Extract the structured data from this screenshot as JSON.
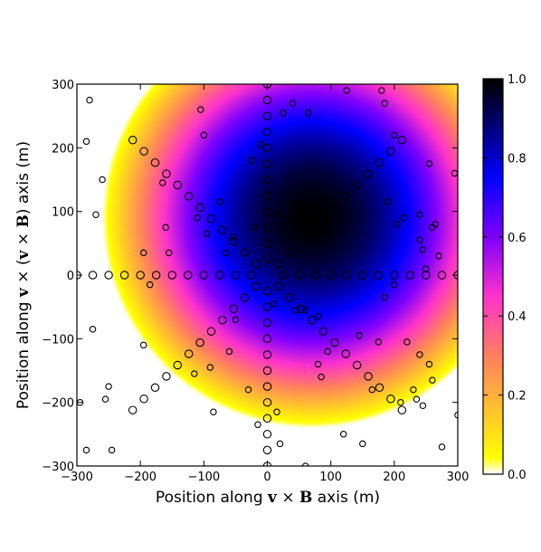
{
  "chart_data": {
    "type": "heatmap",
    "title": "",
    "xlabel": {
      "prefix": "Position along ",
      "vec1": "v",
      "times": " × ",
      "vec2": "B",
      "suffix": " axis (m)"
    },
    "ylabel": {
      "prefix": "Position along ",
      "vec1": "v",
      "times1": " × (",
      "vec2": "v",
      "times2": " × ",
      "vec3": "B",
      "suffix": ") axis (m)"
    },
    "xlim": [
      -300,
      300
    ],
    "ylim": [
      -300,
      300
    ],
    "xticks": [
      -300,
      -200,
      -100,
      0,
      100,
      200,
      300
    ],
    "yticks": [
      -300,
      -200,
      -100,
      0,
      100,
      200,
      300
    ],
    "xtick_labels": [
      "−300",
      "−200",
      "−100",
      "0",
      "100",
      "200",
      "300"
    ],
    "ytick_labels": [
      "−300",
      "−200",
      "−100",
      "0",
      "100",
      "200",
      "300"
    ],
    "heatmap": {
      "peak_center": [
        70,
        90
      ],
      "fade_radius": 330,
      "colormap_stops": [
        {
          "v": 0.0,
          "color": "#ffffff"
        },
        {
          "v": 0.04,
          "color": "#ffff00"
        },
        {
          "v": 0.3,
          "color": "#ff7f60"
        },
        {
          "v": 0.45,
          "color": "#ff33cc"
        },
        {
          "v": 0.6,
          "color": "#7f00ff"
        },
        {
          "v": 0.75,
          "color": "#0000ff"
        },
        {
          "v": 1.0,
          "color": "#000000"
        }
      ]
    },
    "colorbar": {
      "min": 0.0,
      "max": 1.0,
      "ticks": [
        0.0,
        0.2,
        0.4,
        0.6,
        0.8,
        1.0
      ],
      "tick_labels": [
        "0.0",
        "0.2",
        "0.4",
        "0.6",
        "0.8",
        "1.0"
      ],
      "placement": "right"
    },
    "antenna_pattern": {
      "type": "scatter",
      "marker": "open-circle",
      "marker_color": "#000000",
      "star_arms_deg": [
        0,
        45,
        90,
        135,
        180,
        225,
        270,
        315
      ],
      "star_radii_m": [
        25,
        50,
        75,
        100,
        125,
        150,
        175,
        200,
        225,
        250,
        275,
        300
      ],
      "extra_points": [
        [
          -285,
          -275
        ],
        [
          -255,
          -195
        ],
        [
          -250,
          -175
        ],
        [
          -245,
          -275
        ],
        [
          -275,
          -85
        ],
        [
          -270,
          95
        ],
        [
          -260,
          150
        ],
        [
          -195,
          35
        ],
        [
          -195,
          -110
        ],
        [
          -185,
          -15
        ],
        [
          -165,
          145
        ],
        [
          -160,
          75
        ],
        [
          -155,
          35
        ],
        [
          -115,
          -155
        ],
        [
          -110,
          90
        ],
        [
          -95,
          65
        ],
        [
          -90,
          -145
        ],
        [
          -85,
          -215
        ],
        [
          -75,
          115
        ],
        [
          -65,
          35
        ],
        [
          -60,
          -120
        ],
        [
          -55,
          60
        ],
        [
          -50,
          -70
        ],
        [
          -30,
          -180
        ],
        [
          -25,
          180
        ],
        [
          -20,
          75
        ],
        [
          -15,
          -235
        ],
        [
          -10,
          205
        ],
        [
          10,
          -45
        ],
        [
          15,
          -215
        ],
        [
          15,
          95
        ],
        [
          20,
          -265
        ],
        [
          25,
          255
        ],
        [
          30,
          55
        ],
        [
          40,
          270
        ],
        [
          45,
          -55
        ],
        [
          60,
          -55
        ],
        [
          65,
          255
        ],
        [
          80,
          -140
        ],
        [
          80,
          -65
        ],
        [
          85,
          -160
        ],
        [
          90,
          95
        ],
        [
          95,
          -120
        ],
        [
          120,
          -250
        ],
        [
          125,
          290
        ],
        [
          145,
          -95
        ],
        [
          150,
          -265
        ],
        [
          165,
          -180
        ],
        [
          175,
          -105
        ],
        [
          180,
          290
        ],
        [
          185,
          270
        ],
        [
          185,
          -35
        ],
        [
          190,
          115
        ],
        [
          200,
          220
        ],
        [
          200,
          -15
        ],
        [
          205,
          80
        ],
        [
          210,
          -200
        ],
        [
          215,
          90
        ],
        [
          220,
          -105
        ],
        [
          230,
          -180
        ],
        [
          235,
          -195
        ],
        [
          240,
          95
        ],
        [
          240,
          55
        ],
        [
          240,
          -125
        ],
        [
          245,
          40
        ],
        [
          245,
          -205
        ],
        [
          250,
          10
        ],
        [
          255,
          -140
        ],
        [
          255,
          175
        ],
        [
          260,
          75
        ],
        [
          260,
          -165
        ],
        [
          265,
          80
        ],
        [
          270,
          30
        ],
        [
          275,
          -270
        ],
        [
          295,
          160
        ],
        [
          300,
          -220
        ],
        [
          -280,
          275
        ],
        [
          -295,
          -200
        ],
        [
          -285,
          210
        ],
        [
          -100,
          220
        ],
        [
          -105,
          260
        ],
        [
          60,
          -300
        ]
      ]
    }
  }
}
